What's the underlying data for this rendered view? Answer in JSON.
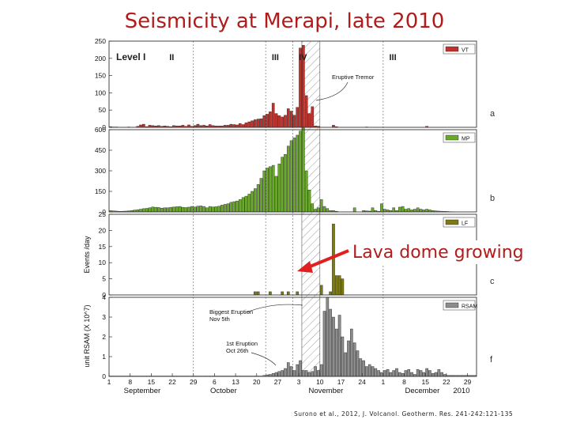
{
  "slide": {
    "title": "Seismicity at Merapi, late 2010",
    "annotation": "Lava dome growing",
    "citation": "Surono et al., 2012, J. Volcanol. Geotherm. Res. 241-242:121-135"
  },
  "figure": {
    "ylabel_lf": "Events /day",
    "ylabel_rsam": "unit RSAM (X 10^7)",
    "x_ticks": [
      "1",
      "8",
      "15",
      "22",
      "29",
      "6",
      "13",
      "20",
      "27",
      "3",
      "10",
      "17",
      "24",
      "1",
      "8",
      "15",
      "22",
      "29"
    ],
    "months": [
      "September",
      "October",
      "November",
      "December",
      "2010"
    ],
    "phases": [
      "Level I",
      "II",
      "III",
      "IV",
      "III"
    ],
    "eruptive_tremor_label": "Eruptive Tremor",
    "biggest_eruption_label": "Biggest Eruption",
    "biggest_eruption_date": "Nov 5th",
    "first_eruption_label": "1st Eruption",
    "first_eruption_date": "Oct 26th",
    "colors": {
      "VT": "#c0312b",
      "MP": "#6aaa2a",
      "LF": "#7c7a10",
      "RSAM": "#8c8c8c",
      "hatch": "#9a9a9a",
      "arrow": "#e02020"
    }
  },
  "chart_data": [
    {
      "type": "bar",
      "legend": "VT",
      "panel_letter": "a",
      "x_day_of_year_start": 244,
      "ylim": [
        0,
        250
      ],
      "yticks": [
        0,
        50,
        100,
        150,
        200,
        250
      ],
      "values": [
        2,
        1,
        1,
        0,
        0,
        0,
        1,
        0,
        0,
        3,
        7,
        9,
        2,
        6,
        5,
        4,
        5,
        3,
        4,
        3,
        2,
        5,
        4,
        4,
        6,
        3,
        7,
        3,
        5,
        9,
        5,
        6,
        4,
        8,
        5,
        4,
        4,
        4,
        6,
        6,
        9,
        8,
        7,
        11,
        8,
        13,
        16,
        19,
        22,
        24,
        25,
        34,
        38,
        45,
        70,
        40,
        34,
        30,
        35,
        54,
        47,
        35,
        58,
        230,
        238,
        92,
        40,
        60,
        4,
        3,
        0,
        0,
        0,
        0,
        6,
        2,
        0,
        0,
        0,
        0,
        0,
        0,
        0,
        0,
        0,
        1,
        0,
        0,
        0,
        0,
        0,
        0,
        0,
        0,
        0,
        0,
        0,
        0,
        0,
        0,
        0,
        0,
        0,
        0,
        0,
        3,
        0,
        0,
        0,
        0,
        0,
        0,
        0,
        0,
        0,
        0,
        0,
        0,
        0,
        0,
        0,
        0
      ]
    },
    {
      "type": "bar",
      "legend": "MP",
      "panel_letter": "b",
      "x_day_of_year_start": 244,
      "ylim": [
        0,
        600
      ],
      "yticks": [
        0,
        150,
        300,
        450,
        600
      ],
      "values": [
        10,
        8,
        6,
        4,
        5,
        6,
        8,
        10,
        14,
        16,
        20,
        24,
        26,
        30,
        36,
        34,
        32,
        28,
        30,
        30,
        34,
        36,
        38,
        40,
        34,
        32,
        35,
        40,
        36,
        42,
        44,
        40,
        30,
        40,
        36,
        38,
        42,
        50,
        55,
        60,
        70,
        75,
        80,
        90,
        105,
        115,
        130,
        150,
        170,
        200,
        245,
        300,
        320,
        330,
        340,
        260,
        350,
        400,
        420,
        480,
        520,
        540,
        560,
        590,
        620,
        300,
        160,
        60,
        20,
        30,
        90,
        40,
        25,
        10,
        10,
        5,
        0,
        0,
        0,
        0,
        0,
        30,
        0,
        0,
        10,
        8,
        6,
        30,
        10,
        5,
        60,
        20,
        15,
        10,
        30,
        10,
        35,
        40,
        20,
        25,
        15,
        20,
        30,
        20,
        15,
        20,
        15,
        10,
        8,
        6,
        5,
        4,
        3,
        2,
        1,
        0,
        0,
        0,
        0,
        0,
        0,
        0
      ]
    },
    {
      "type": "bar",
      "legend": "LF",
      "panel_letter": "c",
      "x_day_of_year_start": 244,
      "ylim": [
        0,
        25
      ],
      "yticks": [
        0,
        5,
        10,
        15,
        20,
        25
      ],
      "values": [
        0,
        0,
        0,
        0,
        0,
        0,
        0,
        0,
        0,
        0,
        0,
        0,
        0,
        0,
        0,
        0,
        0,
        0,
        0,
        0,
        0,
        0,
        0,
        0,
        0,
        0,
        0,
        0,
        0,
        0,
        0,
        0,
        0,
        0,
        0,
        0,
        0,
        0,
        0,
        0,
        0,
        0,
        0,
        0,
        0,
        0,
        0,
        0,
        1,
        1,
        0,
        0,
        0,
        1,
        0,
        0,
        0,
        1,
        0,
        1,
        0,
        0,
        1,
        0,
        0,
        0,
        0,
        0,
        0,
        0,
        3,
        0,
        0,
        1,
        22,
        6,
        6,
        5,
        0,
        0,
        0,
        0,
        0,
        0,
        0,
        0,
        0,
        0,
        0,
        0,
        0,
        0,
        0,
        0,
        0,
        0,
        0,
        0,
        0,
        0,
        0,
        0,
        0,
        0,
        0,
        0,
        0,
        0,
        0,
        0,
        0,
        0,
        0,
        0,
        0,
        0,
        0,
        0,
        0,
        0,
        0,
        0
      ]
    },
    {
      "type": "bar",
      "legend": "RSAM",
      "panel_letter": "f",
      "x_day_of_year_start": 244,
      "ylim": [
        0,
        4
      ],
      "yticks": [
        0,
        1,
        2,
        3,
        4
      ],
      "values": [
        0.02,
        0.02,
        0.02,
        0.02,
        0.02,
        0.02,
        0.02,
        0.02,
        0.02,
        0.02,
        0.02,
        0.02,
        0.02,
        0.02,
        0.02,
        0.02,
        0.02,
        0.02,
        0.02,
        0.02,
        0.02,
        0.02,
        0.02,
        0.02,
        0.02,
        0.02,
        0.02,
        0.02,
        0.02,
        0.02,
        0.02,
        0.02,
        0.02,
        0.02,
        0.02,
        0.02,
        0.02,
        0.02,
        0.02,
        0.02,
        0.02,
        0.02,
        0.02,
        0.02,
        0.02,
        0.02,
        0.02,
        0.02,
        0.02,
        0.02,
        0.02,
        0.05,
        0.08,
        0.1,
        0.15,
        0.2,
        0.25,
        0.3,
        0.4,
        0.7,
        0.5,
        0.3,
        0.6,
        0.8,
        0.3,
        0.3,
        0.2,
        0.25,
        0.5,
        0.3,
        0.6,
        3.3,
        4.0,
        3.4,
        3.0,
        2.4,
        3.1,
        2.0,
        1.2,
        1.8,
        2.4,
        1.7,
        1.3,
        0.9,
        0.8,
        0.5,
        0.6,
        0.5,
        0.4,
        0.3,
        0.2,
        0.3,
        0.35,
        0.2,
        0.3,
        0.4,
        0.2,
        0.15,
        0.3,
        0.35,
        0.2,
        0.1,
        0.35,
        0.3,
        0.2,
        0.4,
        0.3,
        0.15,
        0.2,
        0.35,
        0.2,
        0.1,
        0.05,
        0.05,
        0.05,
        0.05,
        0.05,
        0.05,
        0.05,
        0.05,
        0.05,
        0.05
      ]
    }
  ]
}
